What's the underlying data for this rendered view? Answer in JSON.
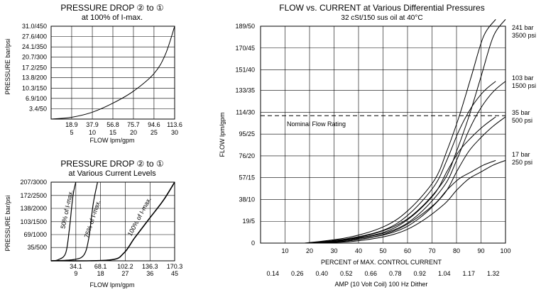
{
  "chart_data": [
    {
      "type": "line",
      "title": "PRESSURE DROP ② to ①",
      "subtitle": "at 100% of I-max.",
      "ylabel": "PRESSURE bar/psi",
      "xlabel": "FLOW lpm/gpm",
      "x_ticks_lpm": [
        "18.9",
        "37.9",
        "56.8",
        "75.7",
        "94.6",
        "113.6"
      ],
      "x_ticks_gpm": [
        "5",
        "10",
        "15",
        "20",
        "25",
        "30"
      ],
      "y_ticks": [
        "3.4/50",
        "6.9/100",
        "10.3/150",
        "13.8/200",
        "17.2/250",
        "20.7/300",
        "24.1/350",
        "27.6/400",
        "31.0/450"
      ],
      "xlim": [
        0,
        113.6
      ],
      "ylim": [
        0,
        31.0
      ],
      "grid": true,
      "series": [
        {
          "x": [
            0,
            18.9,
            37.9,
            56.8,
            75.7,
            94.6,
            105,
            113.6
          ],
          "y": [
            0,
            0.6,
            2.3,
            5.3,
            9.3,
            15.2,
            21.5,
            31.0
          ]
        }
      ]
    },
    {
      "type": "line",
      "title": "PRESSURE DROP ② to ①",
      "subtitle": "at Various Current Levels",
      "ylabel": "PRESSURE bar/psi",
      "xlabel": "FLOW lpm/gpm",
      "x_ticks_lpm": [
        "34.1",
        "68.1",
        "102.2",
        "136.3",
        "170.3"
      ],
      "x_ticks_gpm": [
        "9",
        "18",
        "27",
        "36",
        "45"
      ],
      "y_ticks": [
        "35/500",
        "69/1000",
        "103/1500",
        "138/2000",
        "172/2500",
        "207/3000"
      ],
      "xlim": [
        0,
        170.3
      ],
      "ylim": [
        0,
        207
      ],
      "grid": true,
      "series": [
        {
          "name": "50% of I-max.",
          "x": [
            0,
            10,
            20,
            25,
            30,
            34
          ],
          "y": [
            0,
            3,
            20,
            80,
            170,
            207
          ]
        },
        {
          "name": "75% of I-max.",
          "x": [
            0,
            30,
            45,
            52,
            58,
            64
          ],
          "y": [
            0,
            3,
            15,
            60,
            150,
            207
          ]
        },
        {
          "name": "100% of I-max.",
          "x": [
            0,
            80,
            100,
            115,
            135,
            155,
            170.3
          ],
          "y": [
            0,
            2,
            20,
            60,
            110,
            160,
            207
          ]
        }
      ]
    },
    {
      "type": "line",
      "title": "FLOW vs. CURRENT at Various Differential Pressures",
      "subtitle": "32 cSt/150 sus oil at 40°C",
      "ylabel": "FLOW lpm/gpm",
      "xlabel": "PERCENT of MAX. CONTROL CURRENT",
      "xlabel2": "AMP (10 Volt Coil) 100 Hz Dither",
      "x_ticks": [
        "10",
        "20",
        "30",
        "40",
        "50",
        "60",
        "70",
        "80",
        "90",
        "100"
      ],
      "x_ticks_amp": [
        "0.14",
        "0.26",
        "0.40",
        "0.52",
        "0.66",
        "0.78",
        "0.92",
        "1.04",
        "1.17",
        "1.32"
      ],
      "y_ticks": [
        "0",
        "19/5",
        "38/10",
        "57/15",
        "76/20",
        "95/25",
        "114/30",
        "133/35",
        "151/40",
        "170/45",
        "189/50"
      ],
      "xlim": [
        0,
        100
      ],
      "ylim": [
        0,
        189
      ],
      "grid": true,
      "reference_line": {
        "label": "Nominal Flow Rating",
        "y": 111
      },
      "series": [
        {
          "name": "241 bar 3500 psi",
          "x": [
            22,
            40,
            55,
            65,
            75,
            80,
            85,
            90,
            95,
            100
          ],
          "y": [
            0,
            5,
            15,
            30,
            55,
            80,
            110,
            145,
            180,
            195
          ]
        },
        {
          "name": "103 bar 1500 psi",
          "x": [
            23,
            40,
            55,
            65,
            75,
            80,
            85,
            90,
            95,
            100
          ],
          "y": [
            0,
            4,
            12,
            26,
            50,
            72,
            98,
            118,
            132,
            141
          ]
        },
        {
          "name": "35 bar 500 psi",
          "x": [
            24,
            40,
            55,
            65,
            75,
            80,
            85,
            90,
            95,
            100
          ],
          "y": [
            0,
            3,
            10,
            22,
            43,
            62,
            80,
            92,
            102,
            110
          ]
        },
        {
          "name": "17 bar 250 psi",
          "x": [
            25,
            40,
            55,
            65,
            75,
            80,
            85,
            90,
            95,
            100
          ],
          "y": [
            0,
            2,
            8,
            18,
            34,
            46,
            56,
            62,
            68,
            72
          ]
        }
      ]
    }
  ],
  "legend_labels": {
    "s241": [
      "241 bar",
      "3500 psi"
    ],
    "s103": [
      "103 bar",
      "1500 psi"
    ],
    "s35": [
      "35 bar",
      "500 psi"
    ],
    "s17": [
      "17 bar",
      "250 psi"
    ]
  }
}
